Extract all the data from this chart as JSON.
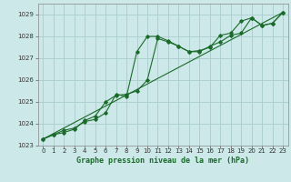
{
  "title": "Graphe pression niveau de la mer (hPa)",
  "background_color": "#cce8e8",
  "grid_color": "#aacccc",
  "line_color": "#1a6b2a",
  "xlim": [
    -0.5,
    23.5
  ],
  "ylim": [
    1023.0,
    1029.5
  ],
  "xticks": [
    0,
    1,
    2,
    3,
    4,
    5,
    6,
    7,
    8,
    9,
    10,
    11,
    12,
    13,
    14,
    15,
    16,
    17,
    18,
    19,
    20,
    21,
    22,
    23
  ],
  "yticks": [
    1023,
    1024,
    1025,
    1026,
    1027,
    1028,
    1029
  ],
  "series1_x": [
    0,
    1,
    2,
    3,
    4,
    5,
    6,
    7,
    8,
    9,
    10,
    11,
    12,
    13,
    14,
    15,
    16,
    17,
    18,
    19,
    20,
    21,
    22,
    23
  ],
  "series1_y": [
    1023.3,
    1023.5,
    1023.6,
    1023.75,
    1024.15,
    1024.35,
    1025.0,
    1025.3,
    1025.35,
    1025.5,
    1026.0,
    1027.9,
    1027.75,
    1027.55,
    1027.3,
    1027.3,
    1027.55,
    1027.75,
    1028.05,
    1028.15,
    1028.85,
    1028.5,
    1028.6,
    1029.1
  ],
  "series2_x": [
    0,
    1,
    2,
    3,
    4,
    5,
    6,
    7,
    8,
    9,
    10,
    11,
    12,
    13,
    14,
    15,
    16,
    17,
    18,
    19,
    20,
    21,
    22,
    23
  ],
  "series2_y": [
    1023.3,
    1023.5,
    1023.7,
    1023.8,
    1024.1,
    1024.2,
    1024.5,
    1025.35,
    1025.25,
    1027.3,
    1028.0,
    1028.0,
    1027.8,
    1027.55,
    1027.3,
    1027.35,
    1027.5,
    1028.05,
    1028.15,
    1028.7,
    1028.85,
    1028.5,
    1028.6,
    1029.1
  ],
  "series3_x": [
    0,
    23
  ],
  "series3_y": [
    1023.3,
    1029.1
  ]
}
